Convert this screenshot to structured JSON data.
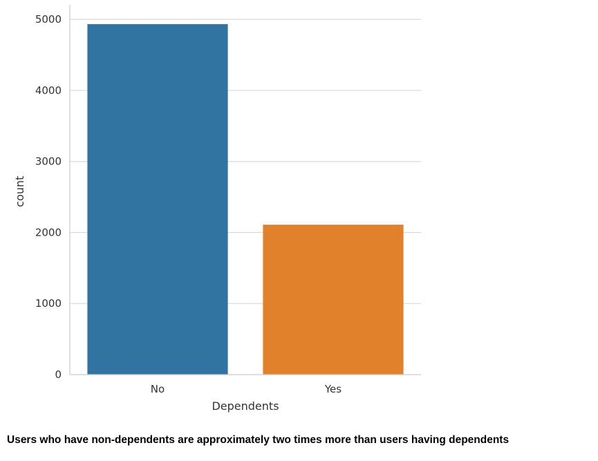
{
  "chart_data": {
    "type": "bar",
    "categories": [
      "No",
      "Yes"
    ],
    "values": [
      4933,
      2110
    ],
    "colors": [
      "#3274a1",
      "#e1812c"
    ],
    "xlabel": "Dependents",
    "ylabel": "count",
    "ylim": [
      0,
      5190
    ],
    "yticks": [
      0,
      1000,
      2000,
      3000,
      4000,
      5000
    ],
    "grid": true
  },
  "caption": "Users who have non-dependents are approximately two times more than users having dependents"
}
